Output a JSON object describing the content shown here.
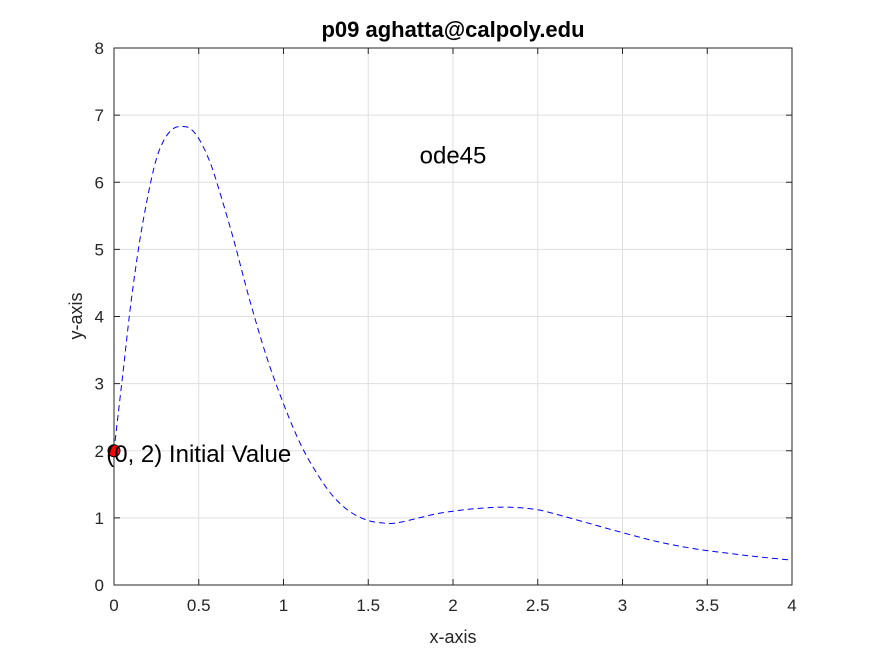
{
  "chart_data": {
    "type": "line",
    "title": "p09 aghatta@calpoly.edu",
    "xlabel": "x-axis",
    "ylabel": "y-axis",
    "xlim": [
      0,
      4
    ],
    "ylim": [
      0,
      8
    ],
    "grid": true,
    "x_ticks": [
      "0",
      "0.5",
      "1",
      "1.5",
      "2",
      "2.5",
      "3",
      "3.5",
      "4"
    ],
    "y_ticks": [
      "0",
      "1",
      "2",
      "3",
      "4",
      "5",
      "6",
      "7",
      "8"
    ],
    "series": [
      {
        "style": "dashed",
        "color": "#0000ff",
        "x": [
          0,
          0.05,
          0.1,
          0.15,
          0.2,
          0.25,
          0.3,
          0.35,
          0.4,
          0.45,
          0.5,
          0.55,
          0.6,
          0.7,
          0.8,
          0.9,
          1.0,
          1.1,
          1.2,
          1.3,
          1.4,
          1.5,
          1.6,
          1.65,
          1.7,
          1.8,
          1.9,
          2.0,
          2.1,
          2.2,
          2.3,
          2.4,
          2.5,
          2.6,
          2.8,
          3.0,
          3.2,
          3.4,
          3.6,
          3.8,
          4.0
        ],
        "y": [
          2.0,
          3.1,
          4.2,
          5.1,
          5.8,
          6.35,
          6.65,
          6.8,
          6.83,
          6.8,
          6.65,
          6.4,
          6.05,
          5.2,
          4.25,
          3.4,
          2.7,
          2.1,
          1.65,
          1.3,
          1.08,
          0.96,
          0.92,
          0.92,
          0.94,
          1.0,
          1.06,
          1.1,
          1.13,
          1.15,
          1.16,
          1.15,
          1.12,
          1.06,
          0.92,
          0.78,
          0.65,
          0.55,
          0.48,
          0.42,
          0.37
        ]
      }
    ],
    "initial_point": {
      "x": 0,
      "y": 2,
      "color": "#ff0000"
    },
    "annotations": [
      {
        "text": "ode45",
        "x": 2.0,
        "y": 6.4
      },
      {
        "text": "(0, 2) Initial Value",
        "x": 0.5,
        "y": 1.95
      }
    ]
  }
}
